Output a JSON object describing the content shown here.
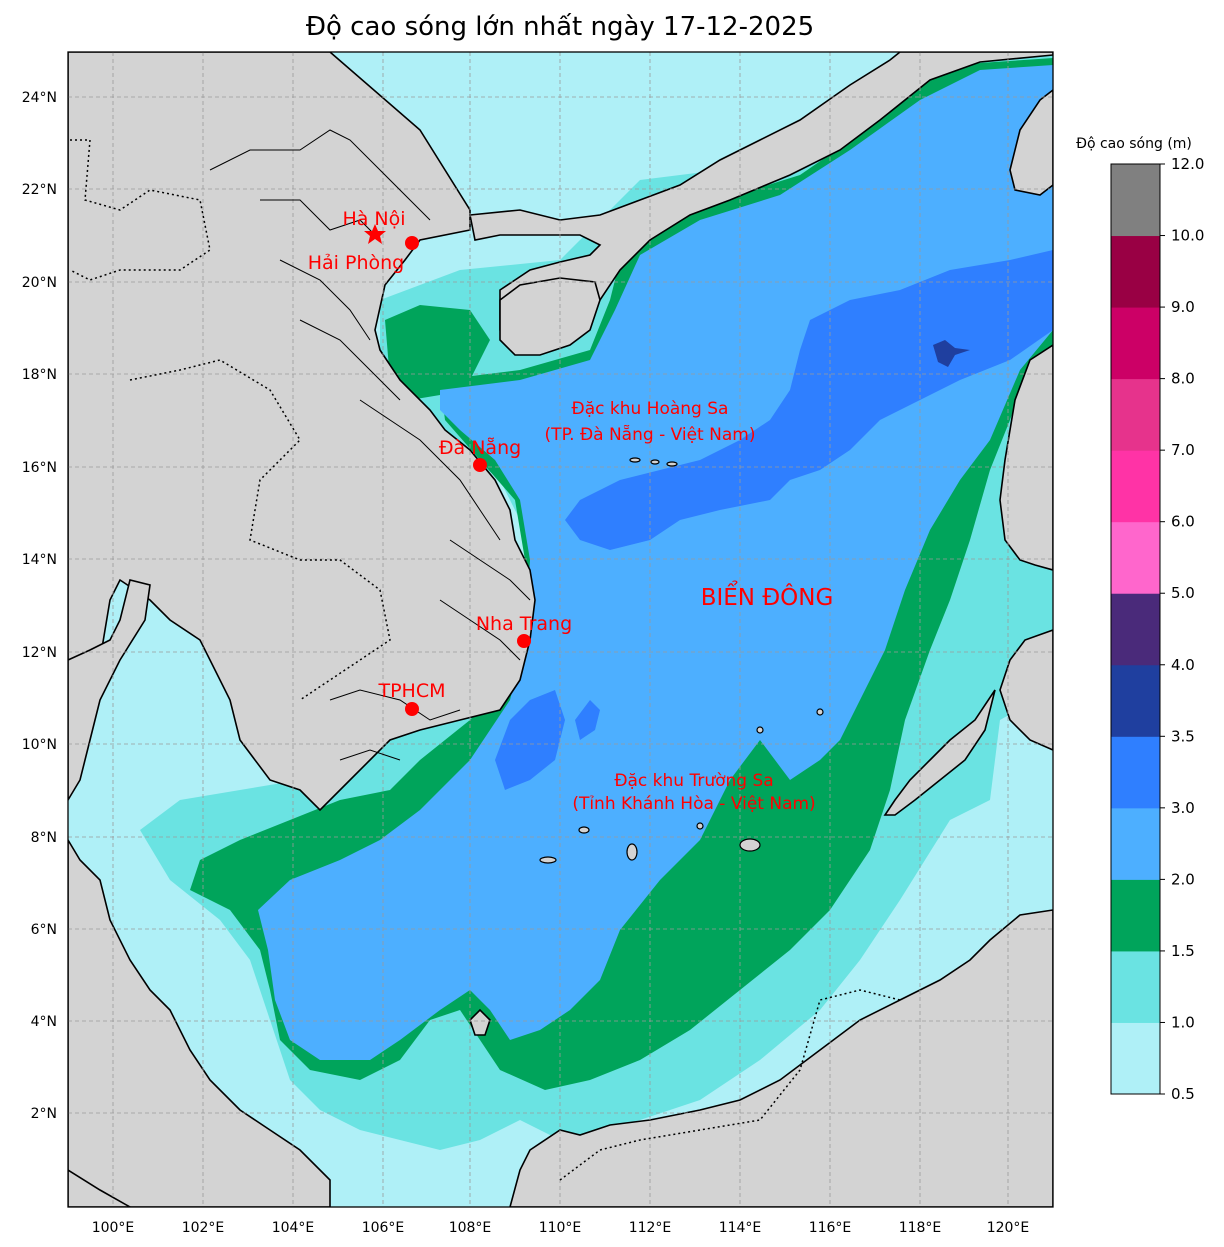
{
  "title": "Độ cao sóng lớn nhất ngày 17-12-2025",
  "colorbar": {
    "title": "Độ cao sóng (m)",
    "levels": [
      {
        "from": 0.5,
        "to": 1.0,
        "color": "#aff0f7"
      },
      {
        "from": 1.0,
        "to": 1.5,
        "color": "#6ae3e2"
      },
      {
        "from": 1.5,
        "to": 2.0,
        "color": "#00a45b"
      },
      {
        "from": 2.0,
        "to": 3.0,
        "color": "#4dafff"
      },
      {
        "from": 3.0,
        "to": 3.5,
        "color": "#2f7fff"
      },
      {
        "from": 3.5,
        "to": 4.0,
        "color": "#1f3f9f"
      },
      {
        "from": 4.0,
        "to": 5.0,
        "color": "#4a2a7a"
      },
      {
        "from": 5.0,
        "to": 6.0,
        "color": "#ff66cc"
      },
      {
        "from": 6.0,
        "to": 7.0,
        "color": "#ff33a6"
      },
      {
        "from": 7.0,
        "to": 8.0,
        "color": "#e6338c"
      },
      {
        "from": 8.0,
        "to": 9.0,
        "color": "#cc0066"
      },
      {
        "from": 9.0,
        "to": 10.0,
        "color": "#990044"
      },
      {
        "from": 10.0,
        "to": 12.0,
        "color": "#808080"
      }
    ],
    "tick_labels": [
      "0.5",
      "1.0",
      "1.5",
      "2.0",
      "3.0",
      "3.5",
      "4.0",
      "5.0",
      "6.0",
      "7.0",
      "8.0",
      "9.0",
      "10.0",
      "12.0"
    ]
  },
  "map": {
    "lon_ticks": [
      "100°E",
      "102°E",
      "104°E",
      "106°E",
      "108°E",
      "110°E",
      "112°E",
      "114°E",
      "116°E",
      "118°E",
      "120°E"
    ],
    "lat_ticks": [
      "2°N",
      "4°N",
      "6°N",
      "8°N",
      "10°N",
      "12°N",
      "14°N",
      "16°N",
      "18°N",
      "20°N",
      "22°N",
      "24°N"
    ],
    "land_color": "#d3d3d3",
    "grid": true,
    "cities": [
      {
        "name": "Hà Nội",
        "marker": "star"
      },
      {
        "name": "Hải Phòng",
        "marker": "dot"
      },
      {
        "name": "Đà Nẵng",
        "marker": "dot"
      },
      {
        "name": "Nha Trang",
        "marker": "dot"
      },
      {
        "name": "TPHCM",
        "marker": "dot"
      }
    ],
    "regions": {
      "hoang_sa_line1": "Đặc khu Hoàng Sa",
      "hoang_sa_line2": "(TP. Đà Nẵng - Việt Nam)",
      "truong_sa_line1": "Đặc khu Trường Sa",
      "truong_sa_line2": "(Tỉnh Khánh Hòa - Việt Nam)",
      "sea": "BIỂN ĐÔNG"
    }
  }
}
